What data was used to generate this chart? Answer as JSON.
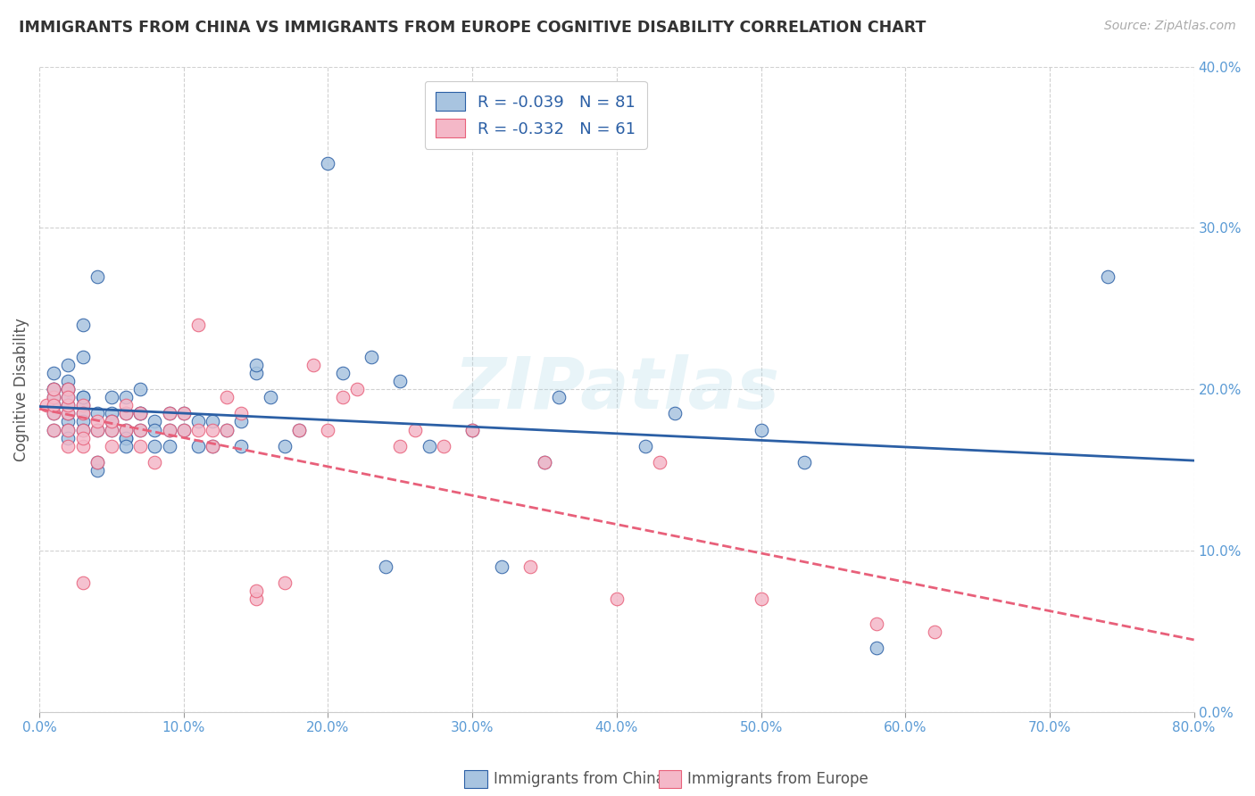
{
  "title": "IMMIGRANTS FROM CHINA VS IMMIGRANTS FROM EUROPE COGNITIVE DISABILITY CORRELATION CHART",
  "source": "Source: ZipAtlas.com",
  "ylabel": "Cognitive Disability",
  "xlim": [
    0.0,
    0.8
  ],
  "ylim": [
    0.0,
    0.4
  ],
  "xticks": [
    0.0,
    0.1,
    0.2,
    0.3,
    0.4,
    0.5,
    0.6,
    0.7,
    0.8
  ],
  "yticks": [
    0.0,
    0.1,
    0.2,
    0.3,
    0.4
  ],
  "china_color": "#a8c4e0",
  "china_line_color": "#2b5fa5",
  "europe_color": "#f4b8c8",
  "europe_line_color": "#e8607a",
  "china_R": -0.039,
  "china_N": 81,
  "europe_R": -0.332,
  "europe_N": 61,
  "legend_label_china": "Immigrants from China",
  "legend_label_europe": "Immigrants from Europe",
  "watermark": "ZIPatlas",
  "china_x": [
    0.01,
    0.01,
    0.01,
    0.01,
    0.01,
    0.01,
    0.01,
    0.01,
    0.02,
    0.02,
    0.02,
    0.02,
    0.02,
    0.02,
    0.02,
    0.02,
    0.02,
    0.02,
    0.03,
    0.03,
    0.03,
    0.03,
    0.03,
    0.03,
    0.03,
    0.03,
    0.04,
    0.04,
    0.04,
    0.04,
    0.04,
    0.05,
    0.05,
    0.05,
    0.05,
    0.06,
    0.06,
    0.06,
    0.06,
    0.06,
    0.06,
    0.07,
    0.07,
    0.07,
    0.07,
    0.08,
    0.08,
    0.08,
    0.09,
    0.09,
    0.09,
    0.1,
    0.1,
    0.11,
    0.11,
    0.12,
    0.12,
    0.13,
    0.14,
    0.14,
    0.15,
    0.15,
    0.16,
    0.17,
    0.18,
    0.2,
    0.21,
    0.23,
    0.24,
    0.25,
    0.27,
    0.3,
    0.32,
    0.35,
    0.36,
    0.42,
    0.44,
    0.5,
    0.53,
    0.58,
    0.74
  ],
  "china_y": [
    0.19,
    0.2,
    0.21,
    0.185,
    0.19,
    0.195,
    0.2,
    0.175,
    0.18,
    0.195,
    0.2,
    0.205,
    0.215,
    0.19,
    0.185,
    0.175,
    0.17,
    0.2,
    0.19,
    0.195,
    0.185,
    0.18,
    0.22,
    0.195,
    0.175,
    0.24,
    0.185,
    0.15,
    0.155,
    0.175,
    0.27,
    0.185,
    0.175,
    0.18,
    0.195,
    0.17,
    0.185,
    0.195,
    0.175,
    0.17,
    0.165,
    0.185,
    0.175,
    0.2,
    0.185,
    0.18,
    0.165,
    0.175,
    0.175,
    0.185,
    0.165,
    0.185,
    0.175,
    0.18,
    0.165,
    0.18,
    0.165,
    0.175,
    0.165,
    0.18,
    0.21,
    0.215,
    0.195,
    0.165,
    0.175,
    0.34,
    0.21,
    0.22,
    0.09,
    0.205,
    0.165,
    0.175,
    0.09,
    0.155,
    0.195,
    0.165,
    0.185,
    0.175,
    0.155,
    0.04,
    0.27
  ],
  "europe_x": [
    0.005,
    0.01,
    0.01,
    0.01,
    0.01,
    0.01,
    0.02,
    0.02,
    0.02,
    0.02,
    0.02,
    0.02,
    0.03,
    0.03,
    0.03,
    0.03,
    0.03,
    0.03,
    0.04,
    0.04,
    0.04,
    0.05,
    0.05,
    0.05,
    0.06,
    0.06,
    0.06,
    0.07,
    0.07,
    0.07,
    0.08,
    0.09,
    0.09,
    0.1,
    0.1,
    0.11,
    0.11,
    0.12,
    0.12,
    0.13,
    0.13,
    0.14,
    0.15,
    0.15,
    0.17,
    0.18,
    0.19,
    0.2,
    0.21,
    0.22,
    0.25,
    0.26,
    0.28,
    0.3,
    0.34,
    0.35,
    0.4,
    0.43,
    0.5,
    0.58,
    0.62
  ],
  "europe_y": [
    0.19,
    0.195,
    0.2,
    0.185,
    0.175,
    0.19,
    0.185,
    0.175,
    0.165,
    0.19,
    0.2,
    0.195,
    0.175,
    0.165,
    0.17,
    0.19,
    0.185,
    0.08,
    0.175,
    0.155,
    0.18,
    0.175,
    0.165,
    0.18,
    0.185,
    0.175,
    0.19,
    0.175,
    0.165,
    0.185,
    0.155,
    0.175,
    0.185,
    0.175,
    0.185,
    0.175,
    0.24,
    0.175,
    0.165,
    0.175,
    0.195,
    0.185,
    0.07,
    0.075,
    0.08,
    0.175,
    0.215,
    0.175,
    0.195,
    0.2,
    0.165,
    0.175,
    0.165,
    0.175,
    0.09,
    0.155,
    0.07,
    0.155,
    0.07,
    0.055,
    0.05
  ]
}
